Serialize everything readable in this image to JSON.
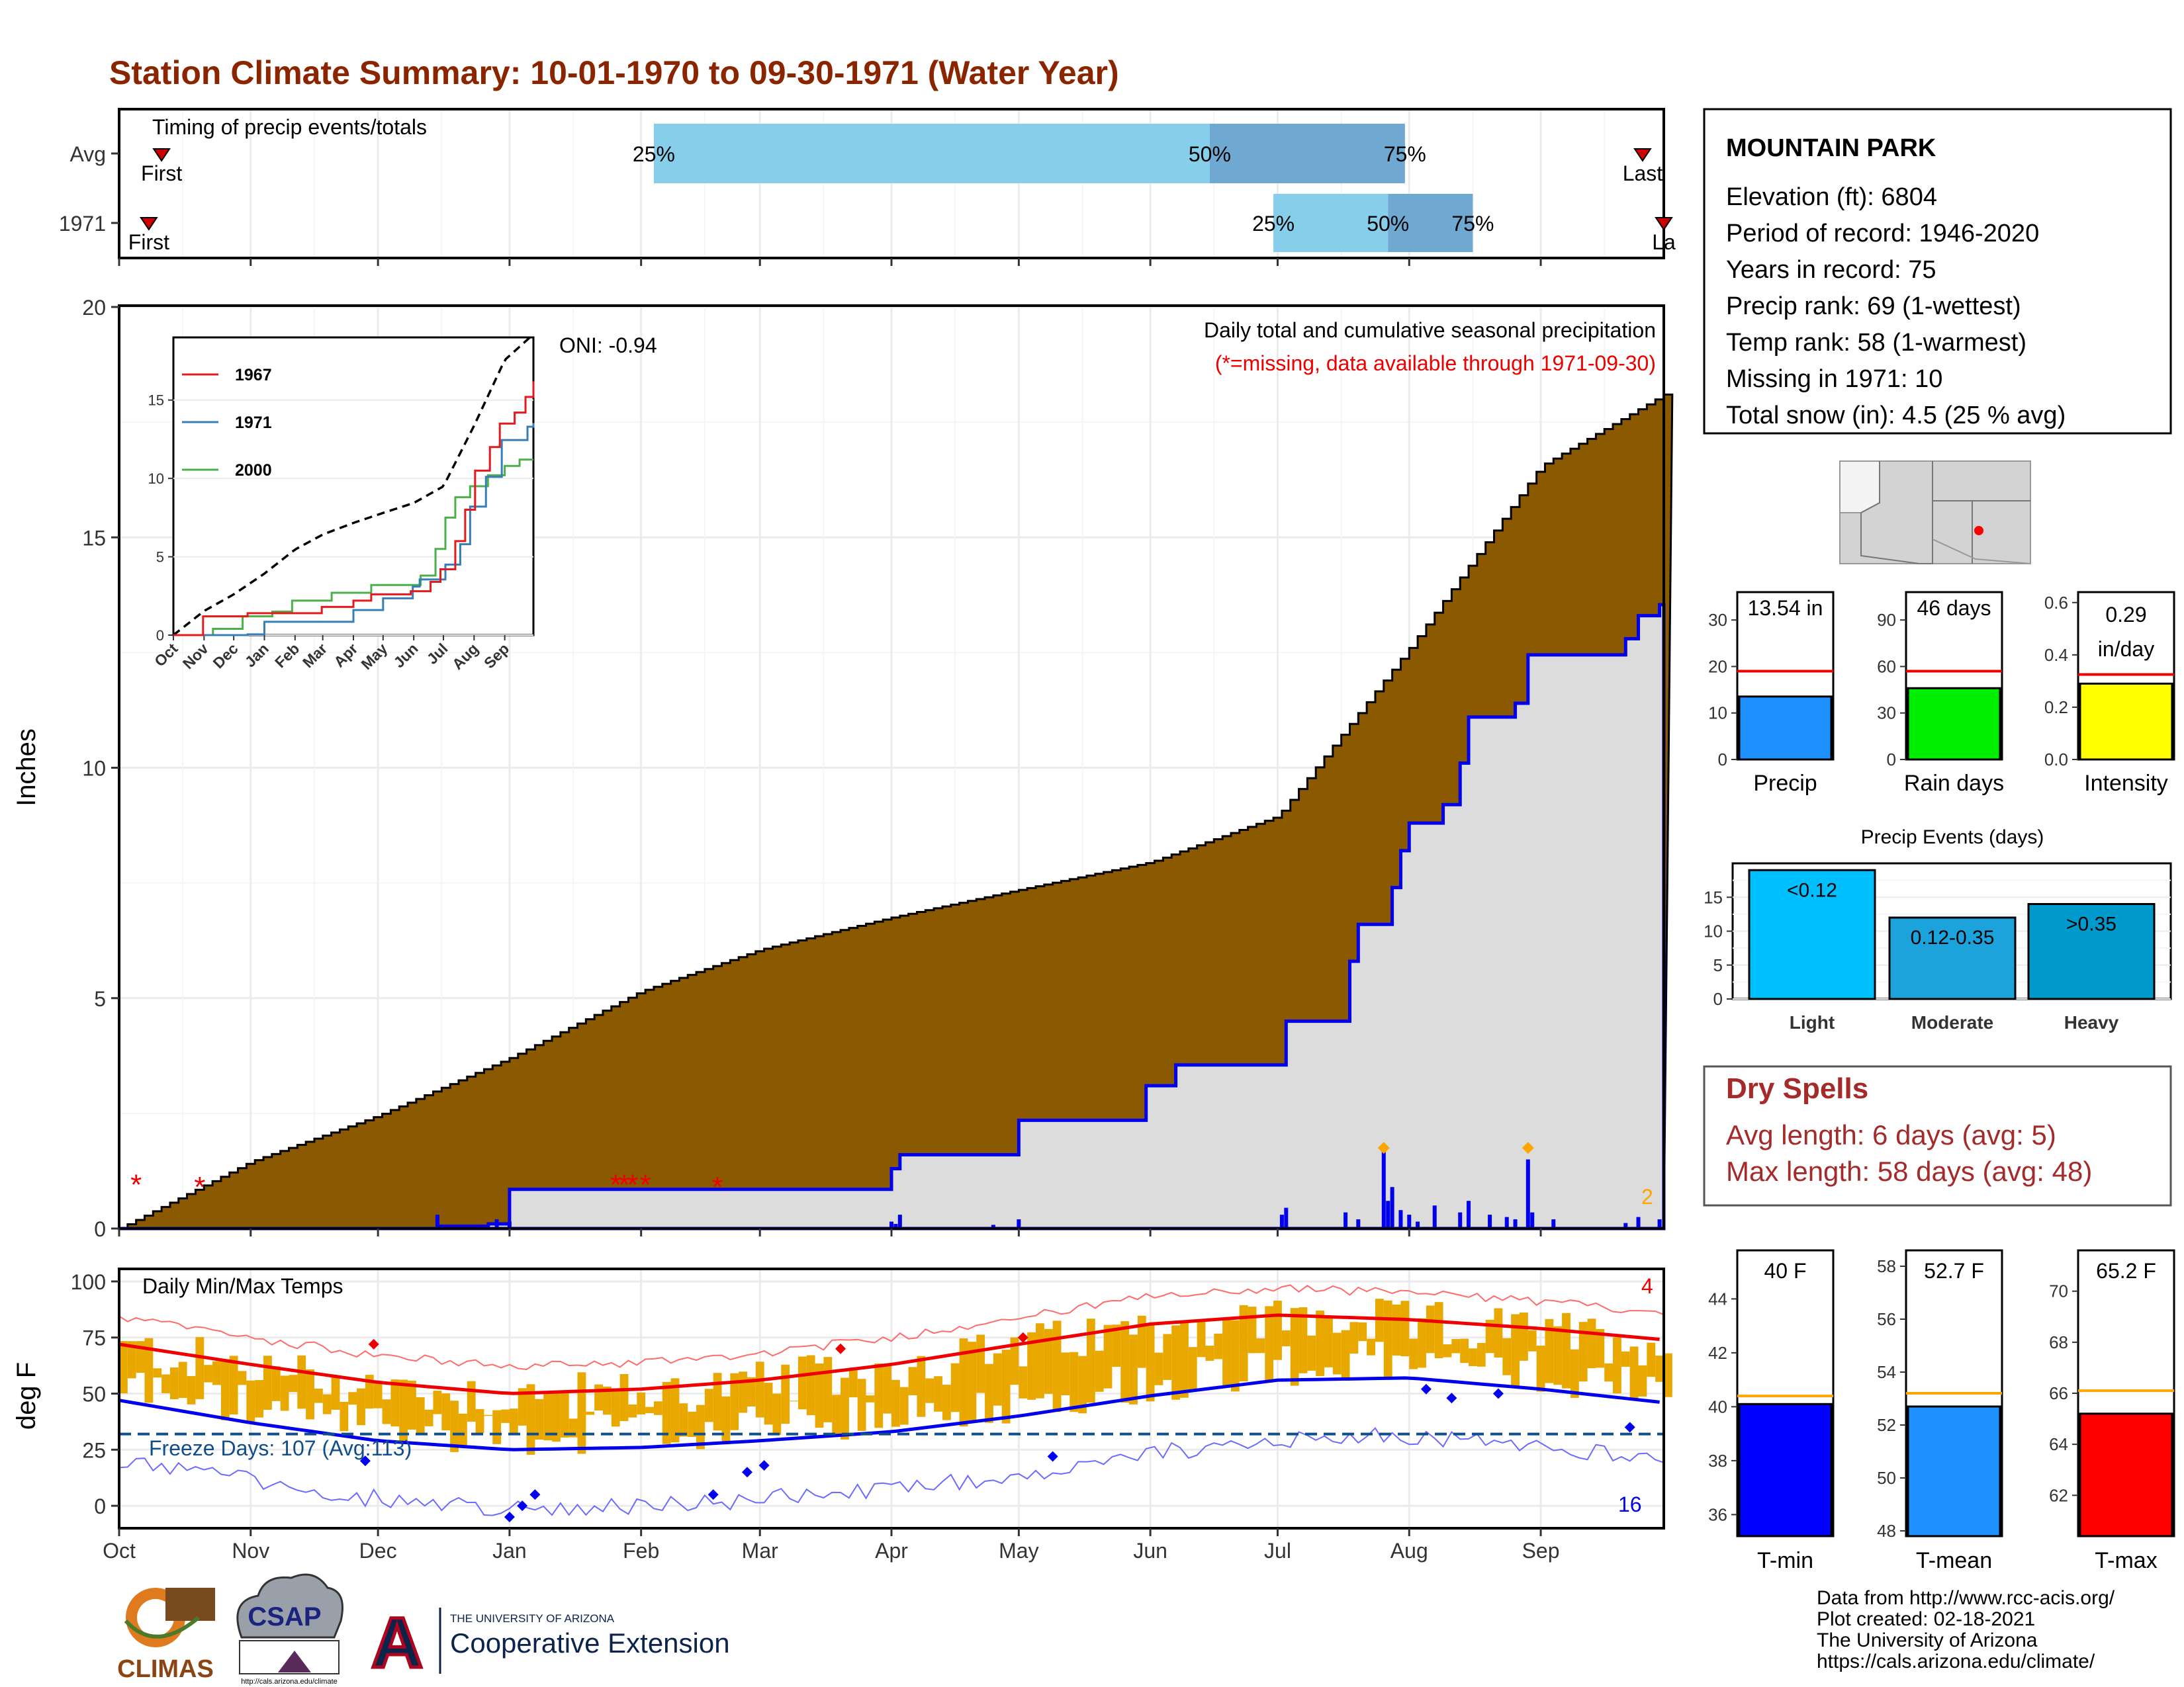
{
  "page_title": "Station Climate Summary: 10-01-1970 to 09-30-1971 (Water Year)",
  "colors": {
    "title": "#8b2500",
    "precip_fill": "#8b5a00",
    "avg_fill": "#dcdcdc",
    "blue": "#0000ee",
    "temp_bar": "#e9a800",
    "tmin_line": "#0000ee",
    "tmax_line": "#ee0000",
    "light_blue": "#87ceeb",
    "steel_blue": "#6fa8d0",
    "dry_spell": "#a52a2a"
  },
  "month_labels": [
    "Oct",
    "Nov",
    "Dec",
    "Jan",
    "Feb",
    "Mar",
    "Apr",
    "May",
    "Jun",
    "Jul",
    "Aug",
    "Sep"
  ],
  "timing": {
    "title": "Timing of precip events/totals",
    "rows": [
      {
        "label": "Avg",
        "first": "First",
        "last": "Last",
        "p25": "25%",
        "p50": "50%",
        "p75": "75%",
        "q25_day": 126,
        "q50_day": 257,
        "q75_day": 303,
        "first_day": 10,
        "last_day": 359
      },
      {
        "label": "1971",
        "first": "First",
        "last": "La",
        "p25": "25%",
        "p50": "50%",
        "p75": "75%",
        "q25_day": 272,
        "q50_day": 299,
        "q75_day": 319,
        "first_day": 7,
        "last_day": 364
      }
    ]
  },
  "precip_panel": {
    "ylabel": "Inches",
    "y_ticks": [
      "0",
      "5",
      "10",
      "15",
      "20"
    ],
    "ylim": [
      0,
      20
    ],
    "oni": "ONI: -0.94",
    "header": "Daily total and cumulative seasonal precipitation",
    "missing_note": "(*=missing, data available through 1971-09-30)",
    "off_scale_count": "2"
  },
  "inset": {
    "y_ticks": [
      "0",
      "5",
      "10",
      "15"
    ],
    "x_ticks": [
      "Oct",
      "Nov",
      "Dec",
      "Jan",
      "Feb",
      "Mar",
      "Apr",
      "May",
      "Jun",
      "Jul",
      "Aug",
      "Sep"
    ],
    "legend": [
      {
        "name": "1967",
        "color": "#e41a1c"
      },
      {
        "name": "1971",
        "color": "#377eb8"
      },
      {
        "name": "2000",
        "color": "#4daf4a"
      }
    ]
  },
  "temp_panel": {
    "ylabel": "deg F",
    "title": "Daily Min/Max Temps",
    "freeze_text": "Freeze Days: 107 (Avg:113)",
    "y_ticks": [
      "0",
      "25",
      "50",
      "75",
      "100"
    ],
    "ylim": [
      -10,
      105
    ],
    "record_high_count": "4",
    "record_low_count": "16"
  },
  "station": {
    "name": "MOUNTAIN PARK",
    "lines": [
      "Elevation (ft): 6804",
      "Period of record: 1946-2020",
      "Years in record: 75",
      "Precip rank: 69 (1-wettest)",
      "Temp rank: 58 (1-warmest)",
      "Missing in 1971: 10",
      "Total snow (in): 4.5 (25 % avg)"
    ]
  },
  "summary_bars": [
    {
      "label": "Precip",
      "value_text": "13.54 in",
      "value": 13.54,
      "avg": 19,
      "ticks": [
        "0",
        "10",
        "20",
        "30"
      ],
      "tick_vals": [
        0,
        10,
        20,
        30
      ],
      "ymax": 36,
      "color": "#1e90ff"
    },
    {
      "label": "Rain days",
      "value_text": "46 days",
      "value": 46,
      "avg": 57,
      "ticks": [
        "0",
        "30",
        "60",
        "90"
      ],
      "tick_vals": [
        0,
        30,
        60,
        90
      ],
      "ymax": 108,
      "color": "#00ee00"
    },
    {
      "label": "Intensity",
      "value_text": "0.29 in/day",
      "value_line1": "0.29",
      "value_line2": "in/day",
      "value": 0.29,
      "avg": 0.325,
      "ticks": [
        "0.0",
        "0.2",
        "0.4",
        "0.6"
      ],
      "tick_vals": [
        0,
        0.2,
        0.4,
        0.6
      ],
      "ymax": 0.64,
      "color": "#ffff00"
    }
  ],
  "events": {
    "title": "Precip Events (days)",
    "y_ticks": [
      "0",
      "5",
      "10",
      "15"
    ],
    "bars": [
      {
        "label": "Light",
        "inner": "<0.12",
        "value": 19,
        "color": "#00bfff"
      },
      {
        "label": "Moderate",
        "inner": "0.12-0.35",
        "value": 12,
        "color": "#1ca3dc"
      },
      {
        "label": "Heavy",
        "inner": ">0.35",
        "value": 14,
        "color": "#0099cc"
      }
    ]
  },
  "dry_spells": {
    "title": "Dry Spells",
    "avg": "Avg length: 6 days (avg: 5)",
    "max": "Max length: 58 days (avg: 48)"
  },
  "temp_bars": [
    {
      "label": "T-min",
      "value_text": "40 F",
      "value": 40.1,
      "avg": 40.4,
      "ticks": [
        "36",
        "38",
        "40",
        "42",
        "44"
      ],
      "tick_vals": [
        36,
        38,
        40,
        42,
        44
      ],
      "ylim": [
        35.2,
        45.8
      ],
      "color": "#0000ff"
    },
    {
      "label": "T-mean",
      "value_text": "52.7 F",
      "value": 52.7,
      "avg": 53.2,
      "ticks": [
        "48",
        "50",
        "52",
        "54",
        "56",
        "58"
      ],
      "tick_vals": [
        48,
        50,
        52,
        54,
        56,
        58
      ],
      "ylim": [
        47.8,
        58.6
      ],
      "color": "#1e90ff"
    },
    {
      "label": "T-max",
      "value_text": "65.2 F",
      "value": 65.2,
      "avg": 66.1,
      "ticks": [
        "62",
        "64",
        "66",
        "68",
        "70"
      ],
      "tick_vals": [
        62,
        64,
        66,
        68,
        70
      ],
      "ylim": [
        60.4,
        71.6
      ],
      "color": "#ff0000"
    }
  ],
  "credits": [
    "Data from http://www.rcc-acis.org/",
    "Plot created: 02-18-2021",
    "The University of Arizona",
    "https://cals.arizona.edu/climate/"
  ],
  "logos": {
    "climas": "CLIMAS",
    "csap": "CSAP",
    "csap_url": "http://cals.arizona.edu/climate",
    "ua_small": "THE UNIVERSITY OF ARIZONA",
    "ua_big": "Cooperative Extension",
    "ua_letter": "A"
  },
  "chart_data": [
    {
      "type": "area",
      "name": "cumulative precip",
      "xlabel": "",
      "ylabel": "Inches",
      "ylim": [
        0,
        20
      ],
      "x": [
        "Oct 1",
        "Nov 1",
        "Dec 1",
        "Jan 1",
        "Feb 1",
        "Mar 1",
        "Apr 1",
        "May 1",
        "Jun 1",
        "Jul 1",
        "Aug 1",
        "Sep 1",
        "Sep 30"
      ],
      "series": [
        {
          "name": "average cumulative",
          "values": [
            0,
            1.45,
            2.45,
            3.7,
            5.15,
            6.05,
            6.75,
            7.35,
            7.95,
            8.95,
            12.6,
            16.55,
            18.1
          ]
        },
        {
          "name": "1971 cumulative",
          "values": [
            0,
            0,
            0,
            0.85,
            0.85,
            0.85,
            1.6,
            2.35,
            2.35,
            3.55,
            8.8,
            12.45,
            13.54
          ]
        }
      ]
    },
    {
      "type": "line",
      "name": "daily temperature",
      "ylabel": "deg F",
      "ylim": [
        -10,
        105
      ],
      "x": [
        "Oct",
        "Nov",
        "Dec",
        "Jan",
        "Feb",
        "Mar",
        "Apr",
        "May",
        "Jun",
        "Jul",
        "Aug",
        "Sep",
        "Sep 30"
      ],
      "series": [
        {
          "name": "avg max",
          "values": [
            72,
            63,
            55,
            50,
            52,
            56,
            63,
            72,
            81,
            85,
            83,
            79,
            74
          ]
        },
        {
          "name": "avg min",
          "values": [
            47,
            37,
            29,
            25,
            26,
            29,
            33,
            40,
            49,
            56,
            57,
            52,
            46
          ]
        }
      ]
    }
  ]
}
